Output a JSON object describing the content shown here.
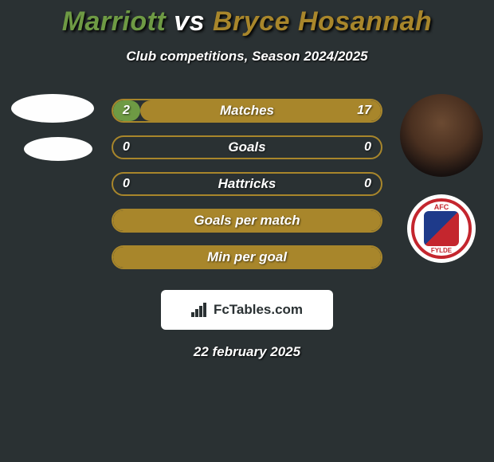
{
  "title": {
    "p1": "Marriott",
    "vs": "vs",
    "p2": "Bryce Hosannah"
  },
  "title_color_p1": "#6e9a44",
  "title_color_vs": "#ffffff",
  "title_color_p2": "#a8862b",
  "subtitle": "Club competitions, Season 2024/2025",
  "accent_left": "#6e9a44",
  "accent_right": "#a8862b",
  "text_color": "#ffffff",
  "bars": [
    {
      "label": "Matches",
      "left": "2",
      "right": "17",
      "left_pct": 10,
      "right_pct": 90
    },
    {
      "label": "Goals",
      "left": "0",
      "right": "0",
      "left_pct": 0,
      "right_pct": 0
    },
    {
      "label": "Hattricks",
      "left": "0",
      "right": "0",
      "left_pct": 0,
      "right_pct": 0
    },
    {
      "label": "Goals per match",
      "left": "",
      "right": "",
      "left_pct": 0,
      "right_pct": 100
    },
    {
      "label": "Min per goal",
      "left": "",
      "right": "",
      "left_pct": 0,
      "right_pct": 100
    }
  ],
  "watermark_text": "FcTables.com",
  "date": "22 february 2025",
  "badge": {
    "top": "AFC",
    "bottom": "FYLDE"
  }
}
